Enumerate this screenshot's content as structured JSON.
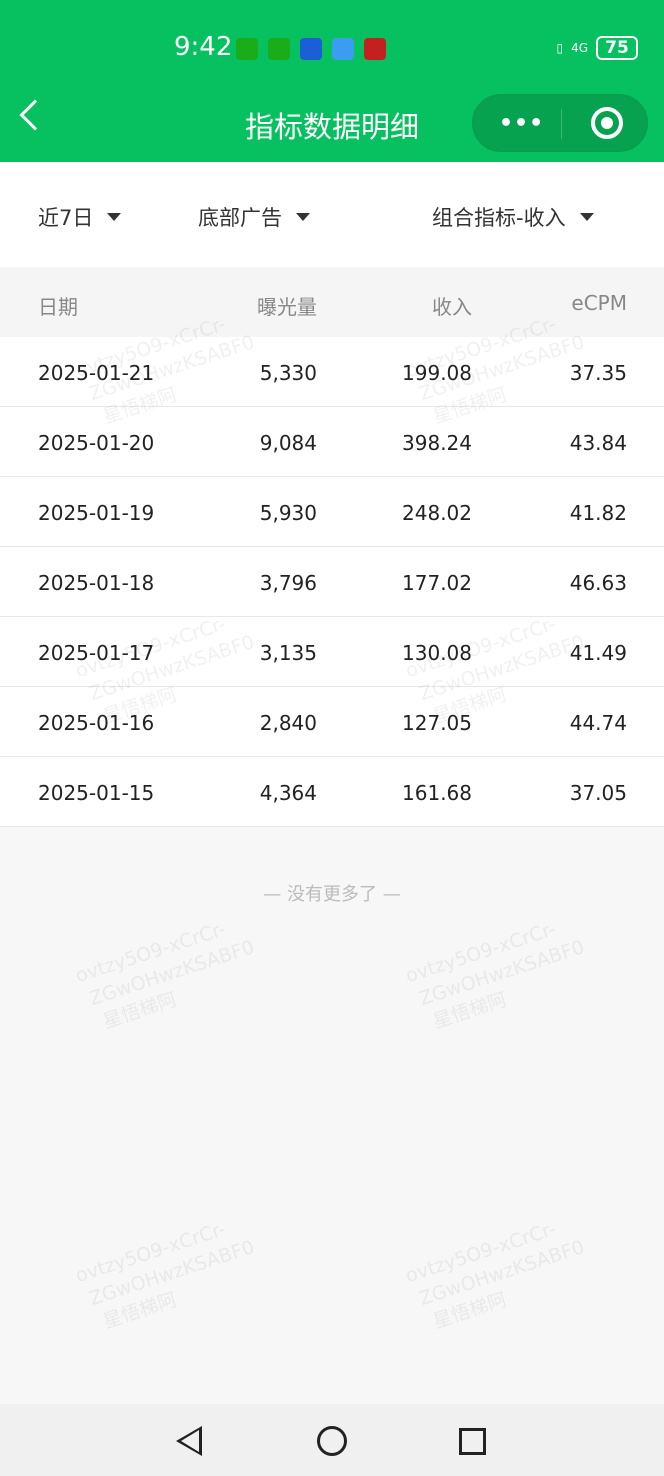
{
  "status_bar": {
    "time": "9:42",
    "network": "4G",
    "battery": "75"
  },
  "header": {
    "title": "指标数据明细",
    "back": "back",
    "more": "•••"
  },
  "filters": [
    {
      "label": "近7日"
    },
    {
      "label": "底部广告"
    },
    {
      "label": "组合指标-收入"
    }
  ],
  "table": {
    "columns": [
      "日期",
      "曝光量",
      "收入",
      "eCPM"
    ],
    "rows": [
      [
        "2025-01-21",
        "5,330",
        "199.08",
        "37.35"
      ],
      [
        "2025-01-20",
        "9,084",
        "398.24",
        "43.84"
      ],
      [
        "2025-01-19",
        "5,930",
        "248.02",
        "41.82"
      ],
      [
        "2025-01-18",
        "3,796",
        "177.02",
        "46.63"
      ],
      [
        "2025-01-17",
        "3,135",
        "130.08",
        "41.49"
      ],
      [
        "2025-01-16",
        "2,840",
        "127.05",
        "44.74"
      ],
      [
        "2025-01-15",
        "4,364",
        "161.68",
        "37.05"
      ]
    ]
  },
  "footer_text": "— 没有更多了 —",
  "watermark": [
    "ovtzy5O9-xCrCr-",
    "ZGwOHwzKSABF0",
    "星悟梯阿"
  ],
  "colors": {
    "brand": "#07c160"
  }
}
